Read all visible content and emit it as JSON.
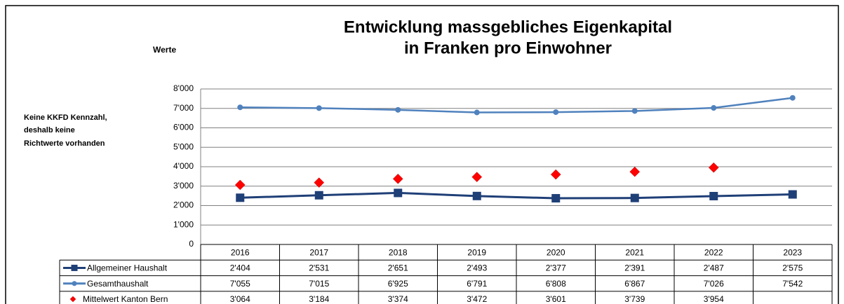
{
  "chart_data": {
    "type": "line",
    "title": [
      "Entwicklung massgebliches Eigenkapital",
      "in Franken pro Einwohner"
    ],
    "y_axis_label": "Werte",
    "annotation": [
      "Keine KKFD Kennzahl,",
      "deshalb keine",
      "Richtwerte vorhanden"
    ],
    "categories": [
      "2016",
      "2017",
      "2018",
      "2019",
      "2020",
      "2021",
      "2022",
      "2023"
    ],
    "series": [
      {
        "name": "Allgemeiner Haushalt",
        "color": "#1f3f77",
        "marker": "square",
        "line": true,
        "values": [
          2404,
          2531,
          2651,
          2493,
          2377,
          2391,
          2487,
          2575
        ],
        "value_labels": [
          "2'404",
          "2'531",
          "2'651",
          "2'493",
          "2'377",
          "2'391",
          "2'487",
          "2'575"
        ]
      },
      {
        "name": "Gesamthaushalt",
        "color": "#4f81bd",
        "marker": "circle",
        "line": true,
        "values": [
          7055,
          7015,
          6925,
          6791,
          6808,
          6867,
          7026,
          7542
        ],
        "value_labels": [
          "7'055",
          "7'015",
          "6'925",
          "6'791",
          "6'808",
          "6'867",
          "7'026",
          "7'542"
        ]
      },
      {
        "name": "Mittelwert Kanton Bern",
        "color": "#ff0000",
        "marker": "diamond",
        "line": false,
        "values": [
          3064,
          3184,
          3374,
          3472,
          3601,
          3739,
          3954,
          null
        ],
        "value_labels": [
          "3'064",
          "3'184",
          "3'374",
          "3'472",
          "3'601",
          "3'739",
          "3'954",
          null
        ]
      }
    ],
    "ylim": [
      0,
      8000
    ],
    "yticks": [
      0,
      {
        "value": 1000,
        "label": "1'000"
      },
      {
        "value": 2000,
        "label": "2'000"
      },
      {
        "value": 3000,
        "label": "3'000"
      },
      {
        "value": 4000,
        "label": "4'000"
      },
      {
        "value": 5000,
        "label": "5'000"
      },
      {
        "value": 6000,
        "label": "6'000"
      },
      {
        "value": 7000,
        "label": "7'000"
      },
      {
        "value": 8000,
        "label": "8'000"
      }
    ],
    "grid": true
  }
}
